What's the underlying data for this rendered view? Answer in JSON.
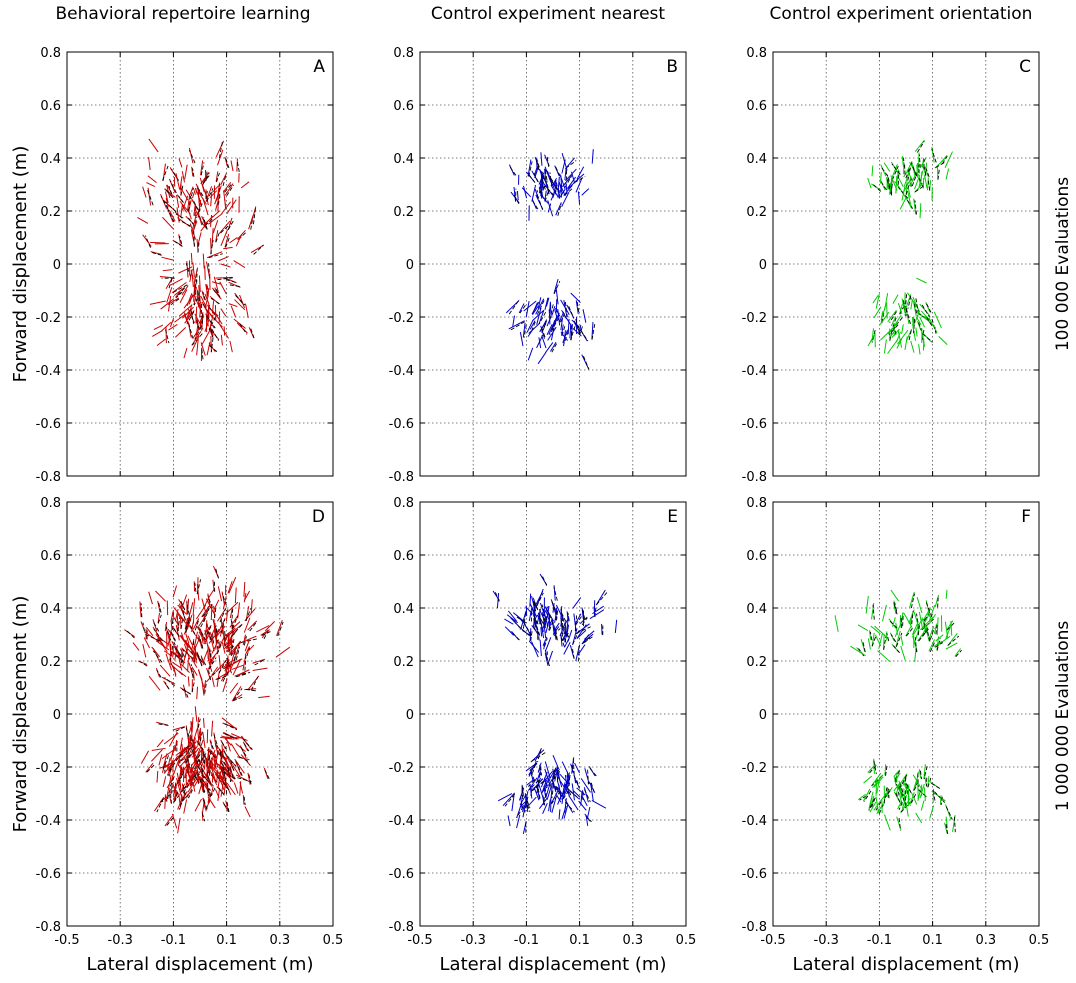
{
  "columns": [
    {
      "title": "Behavioral repertoire learning",
      "color": "#cc0000"
    },
    {
      "title": "Control experiment nearest",
      "color": "#0000cc"
    },
    {
      "title": "Control experiment orientation",
      "color": "#00cc00"
    }
  ],
  "rows": [
    {
      "label": "100 000 Evaluations"
    },
    {
      "label": "1 000 000 Evaluations"
    }
  ],
  "axes": {
    "ylabel": "Forward displacement (m)",
    "xlabel": "Lateral displacement (m)",
    "xlim": [
      -0.5,
      0.5
    ],
    "ylim": [
      -0.8,
      0.8
    ],
    "xticks": [
      "-0.5",
      "-0.3",
      "-0.1",
      "0.1",
      "0.3",
      "0.5"
    ],
    "yticks": [
      "0.8",
      "0.6",
      "0.4",
      "0.2",
      "0",
      "-0.2",
      "-0.4",
      "-0.6",
      "-0.8"
    ],
    "grid": true,
    "grid_style": "dotted"
  },
  "reference_color": "#000000",
  "chart_data": [
    {
      "type": "scatter",
      "panel": "A",
      "row": 0,
      "col": 0,
      "title": "Behavioral repertoire learning",
      "xlabel": "",
      "ylabel": "Forward displacement (m)",
      "xlim": [
        -0.5,
        0.5
      ],
      "ylim": [
        -0.8,
        0.8
      ],
      "grid": true,
      "color": "#cc0000",
      "density": 260,
      "clusters": [
        {
          "x": 0.0,
          "y": 0.22,
          "sx": 0.32,
          "sy": 0.32,
          "ymin": -0.02,
          "ymax": 0.77
        },
        {
          "x": 0.0,
          "y": -0.15,
          "sx": 0.27,
          "sy": 0.3,
          "ymin": -0.72,
          "ymax": 0.02
        }
      ]
    },
    {
      "type": "scatter",
      "panel": "B",
      "row": 0,
      "col": 1,
      "title": "Control experiment nearest",
      "xlabel": "",
      "ylabel": "",
      "xlim": [
        -0.5,
        0.5
      ],
      "ylim": [
        -0.8,
        0.8
      ],
      "grid": true,
      "color": "#0000cc",
      "density": 150,
      "clusters": [
        {
          "x": 0.0,
          "y": 0.3,
          "sx": 0.24,
          "sy": 0.16,
          "ymin": 0.07,
          "ymax": 0.55
        },
        {
          "x": 0.0,
          "y": -0.22,
          "sx": 0.22,
          "sy": 0.2,
          "ymin": -0.54,
          "ymax": 0.0
        }
      ]
    },
    {
      "type": "scatter",
      "panel": "C",
      "row": 0,
      "col": 2,
      "title": "Control experiment orientation",
      "xlabel": "",
      "ylabel": "",
      "xlim": [
        -0.5,
        0.5
      ],
      "ylim": [
        -0.8,
        0.8
      ],
      "grid": true,
      "color": "#00cc00",
      "density": 130,
      "clusters": [
        {
          "x": 0.0,
          "y": 0.32,
          "sx": 0.24,
          "sy": 0.15,
          "ymin": 0.1,
          "ymax": 0.55
        },
        {
          "x": 0.0,
          "y": -0.22,
          "sx": 0.24,
          "sy": 0.2,
          "ymin": -0.52,
          "ymax": 0.0
        }
      ]
    },
    {
      "type": "scatter",
      "panel": "D",
      "row": 1,
      "col": 0,
      "title": "",
      "xlabel": "Lateral displacement (m)",
      "ylabel": "Forward displacement (m)",
      "xlim": [
        -0.5,
        0.5
      ],
      "ylim": [
        -0.8,
        0.8
      ],
      "grid": true,
      "color": "#cc0000",
      "density": 520,
      "clusters": [
        {
          "x": 0.0,
          "y": 0.28,
          "sx": 0.36,
          "sy": 0.32,
          "ymin": -0.02,
          "ymax": 0.8
        },
        {
          "x": 0.0,
          "y": -0.2,
          "sx": 0.3,
          "sy": 0.28,
          "ymin": -0.72,
          "ymax": 0.0
        }
      ]
    },
    {
      "type": "scatter",
      "panel": "E",
      "row": 1,
      "col": 1,
      "title": "",
      "xlabel": "Lateral displacement (m)",
      "ylabel": "",
      "xlim": [
        -0.5,
        0.5
      ],
      "ylim": [
        -0.8,
        0.8
      ],
      "grid": true,
      "color": "#0000cc",
      "density": 230,
      "clusters": [
        {
          "x": 0.0,
          "y": 0.35,
          "sx": 0.3,
          "sy": 0.2,
          "ymin": 0.05,
          "ymax": 0.65
        },
        {
          "x": 0.0,
          "y": -0.28,
          "sx": 0.28,
          "sy": 0.22,
          "ymin": -0.57,
          "ymax": 0.0
        }
      ]
    },
    {
      "type": "scatter",
      "panel": "F",
      "row": 1,
      "col": 2,
      "title": "",
      "xlabel": "Lateral displacement (m)",
      "ylabel": "",
      "xlim": [
        -0.5,
        0.5
      ],
      "ylim": [
        -0.8,
        0.8
      ],
      "grid": true,
      "color": "#00cc00",
      "density": 150,
      "clusters": [
        {
          "x": 0.0,
          "y": 0.33,
          "sx": 0.3,
          "sy": 0.2,
          "ymin": 0.05,
          "ymax": 0.65
        },
        {
          "x": 0.0,
          "y": -0.3,
          "sx": 0.28,
          "sy": 0.18,
          "ymin": -0.6,
          "ymax": 0.0
        }
      ]
    }
  ]
}
